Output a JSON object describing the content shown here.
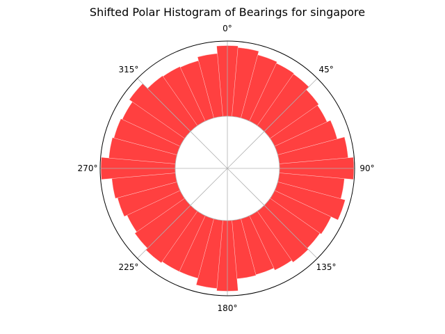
{
  "chart_data": {
    "type": "bar",
    "projection": "polar",
    "title": "Shifted Polar Histogram of Bearings for singapore",
    "theta_direction": "clockwise",
    "theta_zero": "north",
    "angular_ticks": [
      {
        "angle": 0,
        "label": "0°"
      },
      {
        "angle": 45,
        "label": "45°"
      },
      {
        "angle": 90,
        "label": "90°"
      },
      {
        "angle": 135,
        "label": "135°"
      },
      {
        "angle": 180,
        "label": "180°"
      },
      {
        "angle": 225,
        "label": "225°"
      },
      {
        "angle": 270,
        "label": "270°"
      },
      {
        "angle": 315,
        "label": "315°"
      }
    ],
    "grid": true,
    "radial_tick_labels": false,
    "bar_color": "#ff0000",
    "bar_alpha": 0.75,
    "inner_radius_fraction": 0.41,
    "bin_width_degrees": 10,
    "bin_centers_degrees": [
      0,
      10,
      20,
      30,
      40,
      50,
      60,
      70,
      80,
      90,
      100,
      110,
      120,
      130,
      140,
      150,
      160,
      170,
      180,
      190,
      200,
      210,
      220,
      230,
      240,
      250,
      260,
      270,
      280,
      290,
      300,
      310,
      320,
      330,
      340,
      350
    ],
    "values": [
      0.94,
      0.92,
      0.87,
      0.85,
      0.84,
      0.79,
      0.77,
      0.82,
      0.92,
      0.99,
      0.87,
      0.93,
      0.83,
      0.81,
      0.83,
      0.8,
      0.77,
      0.78,
      0.94,
      0.91,
      0.82,
      0.82,
      0.84,
      0.81,
      0.78,
      0.82,
      0.85,
      0.99,
      0.89,
      0.87,
      0.85,
      0.9,
      0.81,
      0.8,
      0.79,
      0.84
    ],
    "rmax": 1.0
  }
}
